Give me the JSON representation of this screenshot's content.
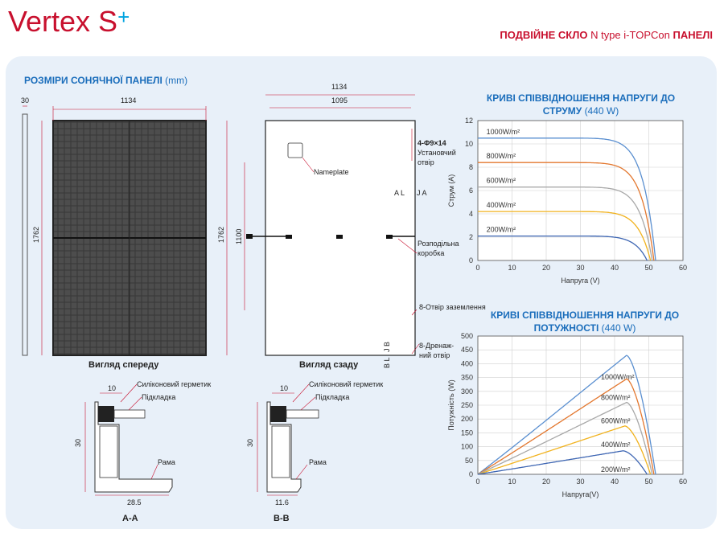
{
  "header": {
    "logo_text": "Vertex S",
    "logo_mark": "+",
    "product_part1": "ПОДВІЙНЕ СКЛО",
    "product_part2": "N type i-TOPCon",
    "product_part3": "ПАНЕЛІ",
    "brand_color": "#c8102e",
    "accent_color": "#00a3e0"
  },
  "dimensions": {
    "title": "РОЗМІРИ СОНЯЧНОЇ ПАНЕЛІ",
    "title_unit": "(mm)",
    "side_thickness": "30",
    "front_width": "1134",
    "front_height": "1762",
    "front_caption": "Вигляд спереду",
    "back_width_outer": "1134",
    "back_width_inner": "1095",
    "back_height": "1762",
    "back_height_inner": "1100",
    "back_caption": "Вигляд сзаду",
    "mount_hole": "4-Φ9×14",
    "mount_hole_label": "Установчий",
    "mount_hole_label2": "отвір",
    "nameplate": "Nameplate",
    "junction_box": "Розподільна",
    "junction_box2": "коробка",
    "grounding": "8-Отвір заземлення",
    "drain": "8-Дренаж-",
    "drain2": "ний отвір",
    "mark_al": "A L",
    "mark_ja": "J A",
    "mark_jb": "J B",
    "mark_bl": "B L"
  },
  "sections": {
    "aa": {
      "sealant": "Силіконовий герметик",
      "pad": "Підкладка",
      "frame": "Рама",
      "top_dim": "10",
      "height_dim": "30",
      "bottom_dim": "28.5",
      "caption": "A-A"
    },
    "bb": {
      "sealant": "Силіконовий герметик",
      "pad": "Підкладка",
      "frame": "Рама",
      "top_dim": "10",
      "height_dim": "30",
      "bottom_dim": "11.6",
      "caption": "B-B"
    }
  },
  "chart_data": [
    {
      "type": "line",
      "title": "КРИВІ СПІВВІДНОШЕННЯ НАПРУГИ ДО СТРУМУ",
      "title_unit": "(440 W)",
      "xlabel": "Напруга (V)",
      "ylabel": "Струм (A)",
      "xlim": [
        0,
        60
      ],
      "ylim": [
        0,
        12
      ],
      "xticks": [
        0,
        10,
        20,
        30,
        40,
        50,
        60
      ],
      "yticks": [
        0,
        2,
        4,
        6,
        8,
        10,
        12
      ],
      "grid": true,
      "series": [
        {
          "name": "1000W/m²",
          "color": "#5a8fd0",
          "isc": 10.5,
          "voc": 52
        },
        {
          "name": "800W/m²",
          "color": "#e3772e",
          "isc": 8.4,
          "voc": 51.5
        },
        {
          "name": "600W/m²",
          "color": "#a8a8a8",
          "isc": 6.3,
          "voc": 51
        },
        {
          "name": "400W/m²",
          "color": "#f1b21d",
          "isc": 4.2,
          "voc": 50.5
        },
        {
          "name": "200W/m²",
          "color": "#3e66b3",
          "isc": 2.1,
          "voc": 49.5
        }
      ]
    },
    {
      "type": "line",
      "title": "КРИВІ СПІВВІДНОШЕННЯ НАПРУГИ ДО ПОТУЖНОСТІ",
      "title_unit": "(440 W)",
      "xlabel": "Напруга(V)",
      "ylabel": "Потужність (W)",
      "xlim": [
        0,
        60
      ],
      "ylim": [
        0,
        500
      ],
      "xticks": [
        0,
        10,
        20,
        30,
        40,
        50,
        60
      ],
      "yticks": [
        0,
        50,
        100,
        150,
        200,
        250,
        300,
        350,
        400,
        450,
        500
      ],
      "grid": true,
      "series": [
        {
          "name": "1000W/m²",
          "color": "#5a8fd0",
          "peak_v": 43.5,
          "peak_p": 430,
          "voc": 52
        },
        {
          "name": "800W/m²",
          "color": "#e3772e",
          "peak_v": 43.5,
          "peak_p": 345,
          "voc": 51.5
        },
        {
          "name": "600W/m²",
          "color": "#a8a8a8",
          "peak_v": 43.5,
          "peak_p": 260,
          "voc": 51
        },
        {
          "name": "400W/m²",
          "color": "#f1b21d",
          "peak_v": 43,
          "peak_p": 175,
          "voc": 50.5
        },
        {
          "name": "200W/m²",
          "color": "#3e66b3",
          "peak_v": 42.5,
          "peak_p": 85,
          "voc": 49.5
        }
      ]
    }
  ]
}
